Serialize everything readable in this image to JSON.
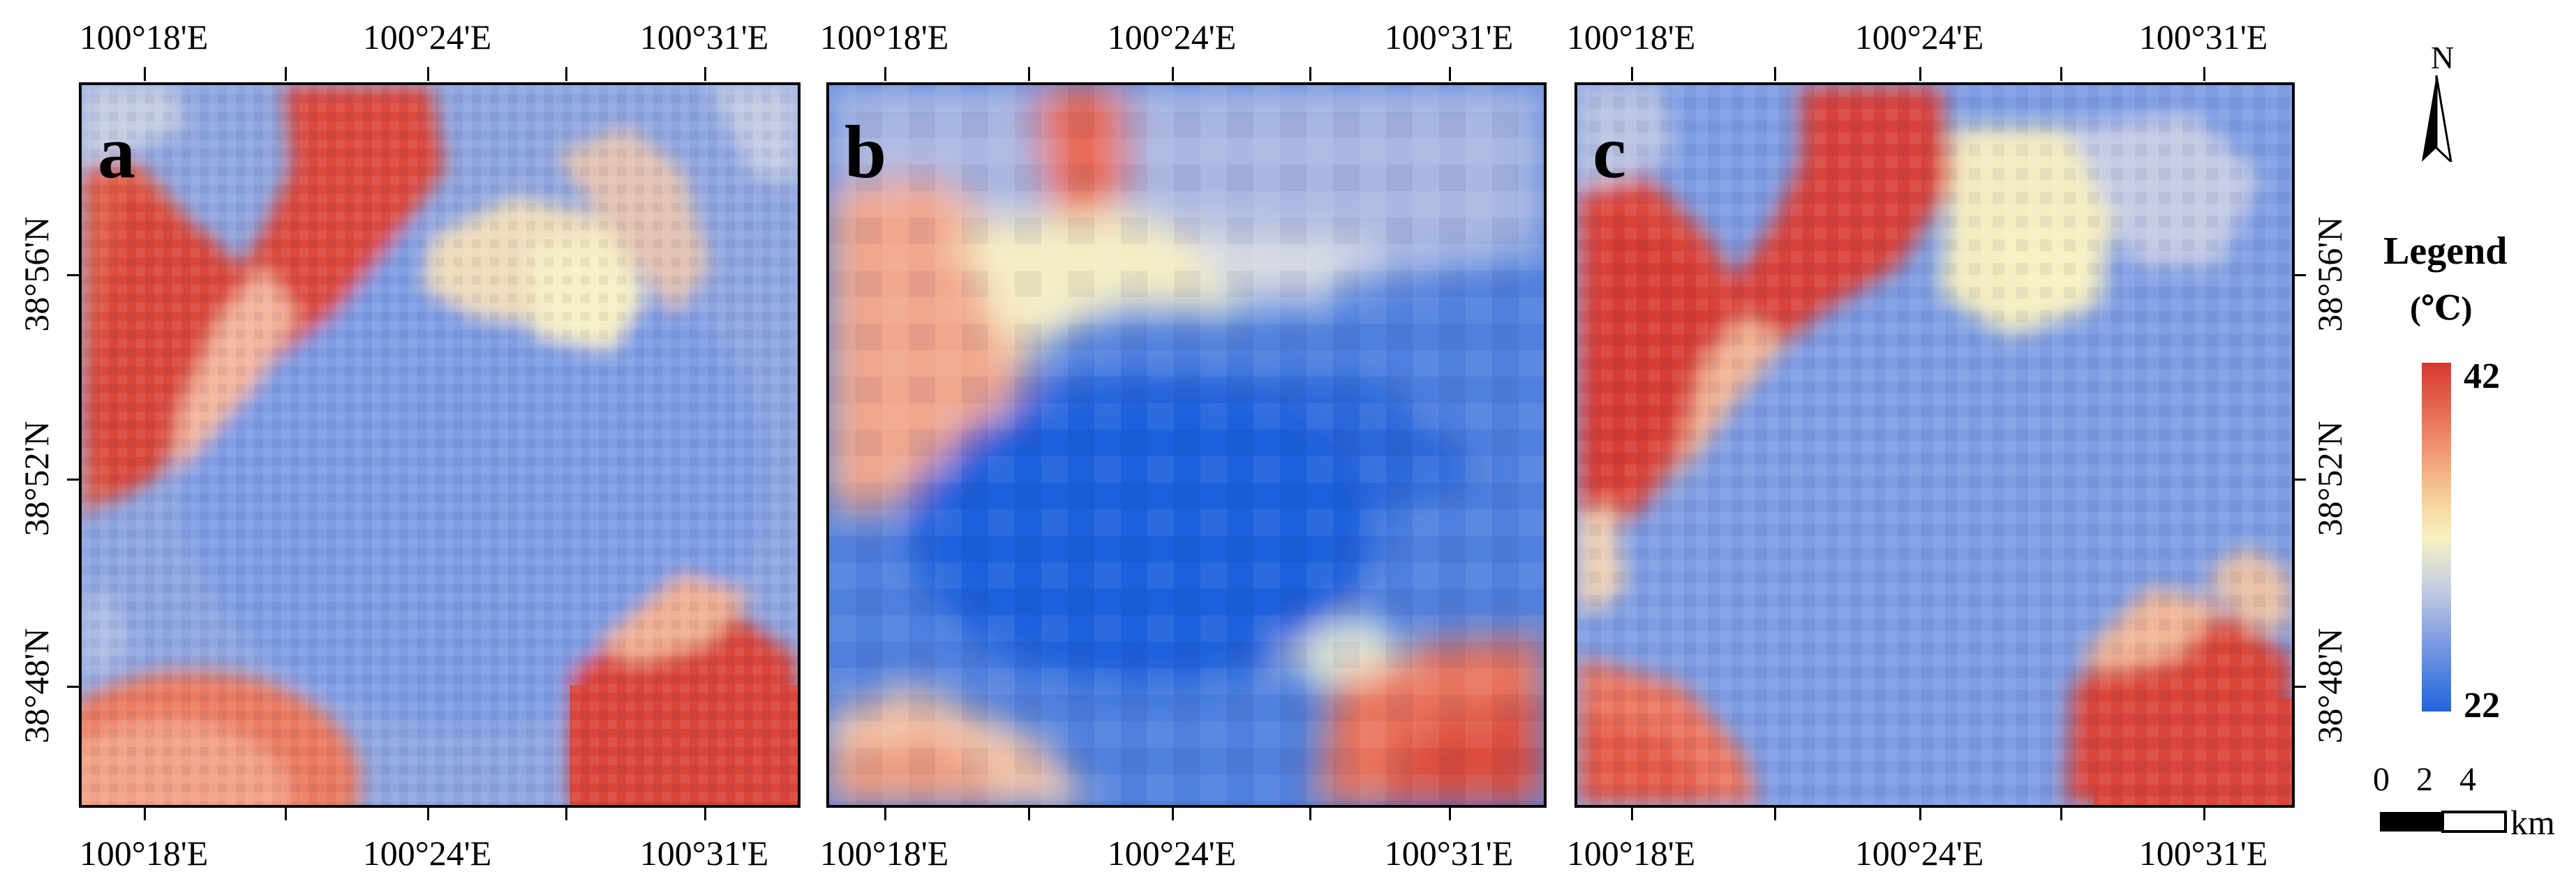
{
  "figure": {
    "panels": [
      {
        "letter": "a",
        "id": "a"
      },
      {
        "letter": "b",
        "id": "b"
      },
      {
        "letter": "c",
        "id": "c"
      }
    ],
    "longitude_labels": [
      "100°18'E",
      "100°24'E",
      "100°31'E"
    ],
    "latitude_labels": [
      "38°56'N",
      "38°52'N",
      "38°48'N"
    ],
    "legend": {
      "title": "Legend",
      "unit": "(℃)",
      "max_label": "42",
      "min_label": "22",
      "max_value": 42,
      "min_value": 22,
      "colors": {
        "hot": "#d7372f",
        "warm": "#f08a68",
        "mid": "#f7f2c0",
        "cool": "#7d9ce4",
        "cold": "#1f65dc"
      }
    },
    "north_arrow": {
      "label": "N",
      "icon": "north-arrow-icon"
    },
    "scale_bar": {
      "ticks": [
        "0",
        "2",
        "4"
      ],
      "unit": "km"
    }
  }
}
